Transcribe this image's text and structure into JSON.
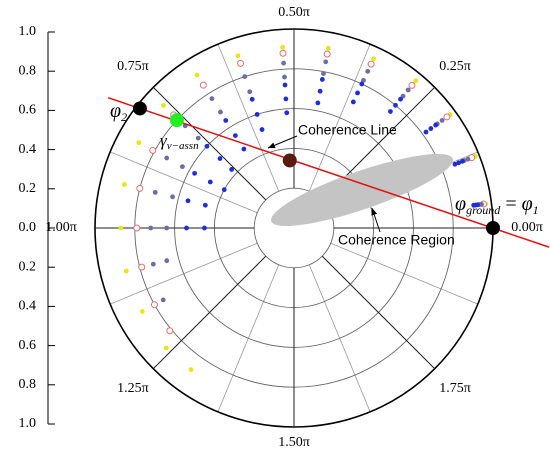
{
  "chart_data": {
    "type": "polar",
    "rticks": [
      {
        "value": 1,
        "label": "1.0"
      },
      {
        "value": 0.8,
        "label": "0.8"
      },
      {
        "value": 0.6,
        "label": "0.6"
      },
      {
        "value": 0.4,
        "label": "0.4"
      },
      {
        "value": 0.2,
        "label": "0.2"
      },
      {
        "value": 0,
        "label": "0.0"
      },
      {
        "value": -0.2,
        "label": "0.2"
      },
      {
        "value": -0.4,
        "label": "0.4"
      },
      {
        "value": -0.6,
        "label": "0.6"
      },
      {
        "value": -0.8,
        "label": "0.8"
      },
      {
        "value": -1,
        "label": "1.0"
      }
    ],
    "rlim": [
      0,
      1
    ],
    "rgrid": [
      0.2,
      0.4,
      0.6,
      0.8,
      1
    ],
    "thetaticks": [
      {
        "value": 0,
        "label": "0.00π"
      },
      {
        "value": 0.25,
        "label": "0.25π"
      },
      {
        "value": 0.5,
        "label": "0.50π"
      },
      {
        "value": 0.75,
        "label": "0.75π"
      },
      {
        "value": 1,
        "label": "1.00π"
      },
      {
        "value": 1.25,
        "label": "1.25π"
      },
      {
        "value": 1.5,
        "label": "1.50π"
      },
      {
        "value": 1.75,
        "label": "1.75π"
      }
    ],
    "thetaminor": [
      0.125,
      0.375,
      0.625,
      0.875,
      1.125,
      1.375,
      1.625,
      1.875
    ],
    "series": [
      {
        "color": "#e6e619",
        "marker": "filled",
        "theta": [
          0.04,
          0.12,
          0.2,
          0.28,
          0.36,
          0.44,
          0.52,
          0.6,
          0.68,
          0.76,
          0.84,
          0.92,
          1.0,
          1.08,
          1.16,
          1.24,
          1.3
        ],
        "r": [
          0.97,
          0.98,
          0.97,
          0.96,
          0.94,
          0.92,
          0.91,
          0.91,
          0.91,
          0.9,
          0.89,
          0.88,
          0.87,
          0.87,
          0.87,
          0.88,
          0.88
        ]
      },
      {
        "color": "#e07070",
        "marker": "open",
        "theta": [
          0.04,
          0.12,
          0.2,
          0.28,
          0.36,
          0.44,
          0.52,
          0.6,
          0.68,
          0.76,
          0.84,
          0.92,
          1.0,
          1.08,
          1.16,
          1.22
        ],
        "r": [
          0.96,
          0.96,
          0.95,
          0.93,
          0.91,
          0.89,
          0.88,
          0.87,
          0.85,
          0.83,
          0.81,
          0.8,
          0.79,
          0.79,
          0.8,
          0.81
        ]
      },
      {
        "color": "#6c6ca8",
        "marker": "filled",
        "theta": [
          0.04,
          0.12,
          0.2,
          0.28,
          0.36,
          0.44,
          0.52,
          0.6,
          0.68,
          0.76,
          0.84,
          0.92,
          1.0,
          1.08,
          1.16
        ],
        "r": [
          0.95,
          0.94,
          0.92,
          0.9,
          0.87,
          0.85,
          0.83,
          0.8,
          0.77,
          0.75,
          0.73,
          0.72,
          0.72,
          0.73,
          0.75
        ]
      },
      {
        "color": "#6c6ca8",
        "marker": "filled",
        "theta": [
          0.04,
          0.12,
          0.2,
          0.28,
          0.36,
          0.44,
          0.52,
          0.6,
          0.68,
          0.76,
          0.84,
          0.92,
          1.0,
          1.08
        ],
        "r": [
          0.94,
          0.92,
          0.89,
          0.86,
          0.82,
          0.79,
          0.76,
          0.72,
          0.69,
          0.66,
          0.64,
          0.63,
          0.64,
          0.66
        ]
      },
      {
        "color": "#1f2fd6",
        "marker": "filled",
        "theta": [
          0.04,
          0.12,
          0.2,
          0.28,
          0.36,
          0.44,
          0.52,
          0.6,
          0.68,
          0.76,
          0.84,
          0.92,
          1.0
        ],
        "r": [
          0.93,
          0.91,
          0.88,
          0.84,
          0.8,
          0.76,
          0.72,
          0.68,
          0.64,
          0.6,
          0.57,
          0.55,
          0.54
        ]
      },
      {
        "color": "#1f2fd6",
        "marker": "filled",
        "theta": [
          0.04,
          0.12,
          0.2,
          0.28,
          0.36,
          0.44,
          0.52,
          0.6,
          0.68,
          0.76,
          0.84,
          0.92,
          1.0
        ],
        "r": [
          0.92,
          0.89,
          0.85,
          0.8,
          0.75,
          0.7,
          0.65,
          0.6,
          0.55,
          0.51,
          0.48,
          0.46,
          0.45
        ]
      },
      {
        "color": "#1f2fd6",
        "marker": "filled",
        "theta": [
          0.04,
          0.12,
          0.2,
          0.28,
          0.36,
          0.44,
          0.52,
          0.6,
          0.68,
          0.76,
          0.84
        ],
        "r": [
          0.91,
          0.87,
          0.82,
          0.76,
          0.7,
          0.64,
          0.58,
          0.52,
          0.47,
          0.43,
          0.4
        ]
      }
    ],
    "points": [
      {
        "theta": 0,
        "r": 1,
        "color": "#000000"
      },
      {
        "theta": 0.79,
        "r": 0.98,
        "color": "#000000"
      },
      {
        "theta": 0.763,
        "r": 0.8,
        "color": "#22ee22"
      },
      {
        "theta": 0.52,
        "r": 0.34,
        "color": "#5a1a10"
      }
    ],
    "line_color": "#e01010",
    "annotations": [
      "Coherence Line",
      "Coherence Region"
    ],
    "labels": [
      {
        "parts": [
          "φ",
          "ground",
          " = ",
          "φ",
          "1"
        ]
      },
      {
        "parts": [
          "φ",
          "2"
        ]
      },
      {
        "parts": [
          "γ",
          "v−assn"
        ]
      }
    ]
  }
}
